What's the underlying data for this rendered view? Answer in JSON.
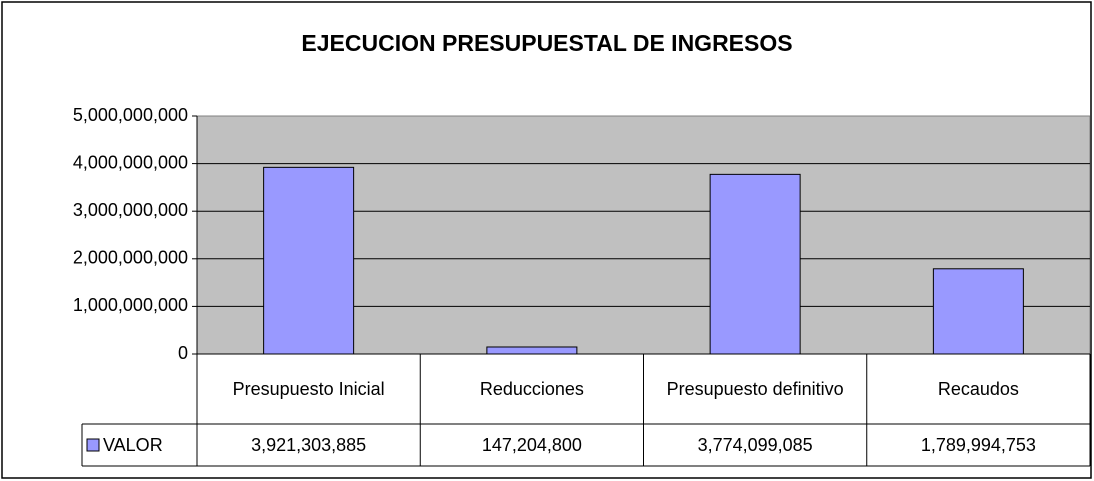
{
  "chart_data": {
    "type": "bar",
    "title": "EJECUCION PRESUPUESTAL DE INGRESOS",
    "categories": [
      "Presupuesto Inicial",
      "Reducciones",
      "Presupuesto definitivo",
      "Recaudos"
    ],
    "series": [
      {
        "name": "VALOR",
        "color": "#9999ff",
        "values": [
          3921303885,
          147204800,
          3774099085,
          1789994753
        ],
        "value_labels": [
          "3,921,303,885",
          "147,204,800",
          "3,774,099,085",
          "1,789,994,753"
        ]
      }
    ],
    "ylim": [
      0,
      5000000000
    ],
    "yticks": [
      0,
      {
        "value": 1000000000,
        "label": "1,000,000,000"
      },
      {
        "value": 2000000000,
        "label": "2,000,000,000"
      },
      {
        "value": 3000000000,
        "label": "3,000,000,000"
      },
      {
        "value": 4000000000,
        "label": "4,000,000,000"
      },
      {
        "value": 5000000000,
        "label": "5,000,000,000"
      }
    ],
    "grid": true
  }
}
